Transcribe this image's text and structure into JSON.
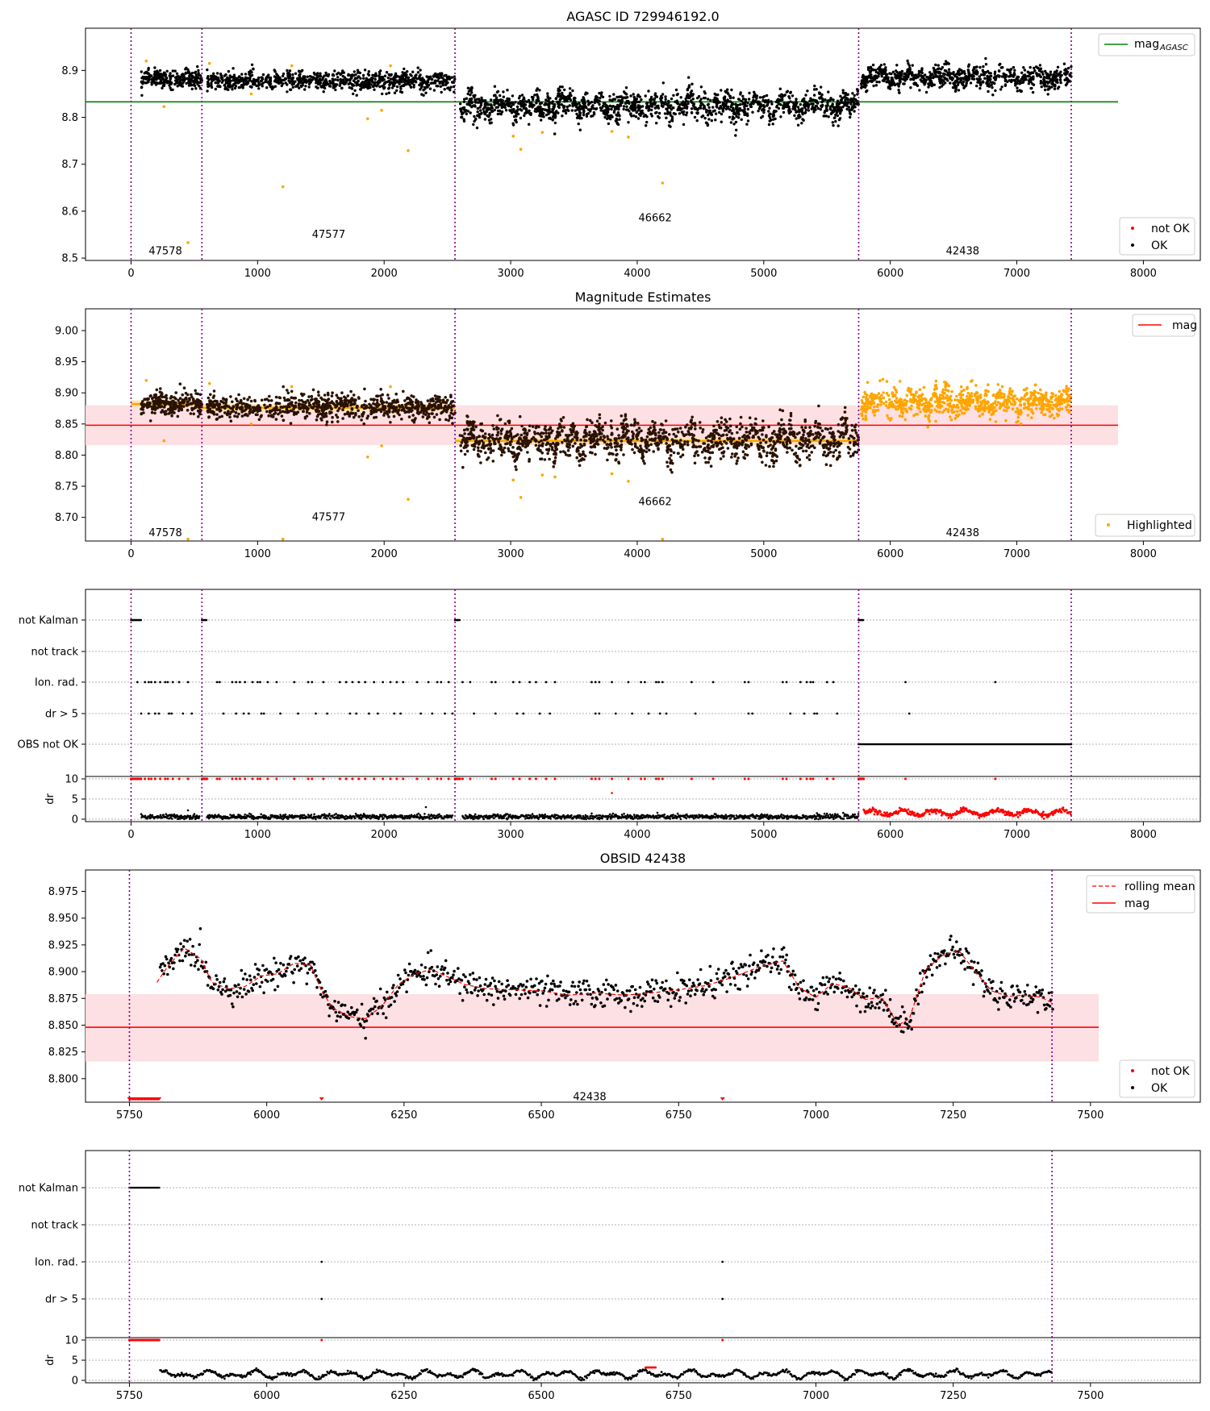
{
  "colors": {
    "ok": "#000000",
    "not_ok": "#ff0000",
    "highlight": "#ffa500",
    "agasc_line": "#008000",
    "mag_line": "#ff0000",
    "band": "#fddde0",
    "obs_line": "#800080",
    "dark_points": "#2a1200"
  },
  "chart_data": [
    {
      "type": "scatter",
      "title": "AGASC ID 729946192.0",
      "xlim": [
        -360,
        8450
      ],
      "ylim": [
        8.495,
        8.99
      ],
      "xticks": [
        "0",
        "1000",
        "2000",
        "3000",
        "4000",
        "5000",
        "6000",
        "7000",
        "8000"
      ],
      "yticks": [
        "8.5",
        "8.6",
        "8.7",
        "8.8",
        "8.9"
      ],
      "obs_boundaries": [
        0,
        560,
        2560,
        5750,
        7430
      ],
      "obs_labels": [
        {
          "text": "47578",
          "x": 280,
          "y": 8.515
        },
        {
          "text": "47577",
          "x": 1570,
          "y": 8.55
        },
        {
          "text": "46662",
          "x": 4150,
          "y": 8.585
        },
        {
          "text": "42438",
          "x": 6580,
          "y": 8.515
        }
      ],
      "reference_line": {
        "name": "mag_AGASC",
        "y": 8.833,
        "x": [
          -360,
          7800
        ]
      },
      "segments": [
        {
          "x": [
            80,
            560
          ],
          "mean": 8.882,
          "sd": 0.01,
          "note": "OK"
        },
        {
          "x": [
            600,
            2560
          ],
          "mean": 8.877,
          "sd": 0.011,
          "note": "OK"
        },
        {
          "x": [
            2600,
            5750
          ],
          "mean": 8.822,
          "sd": 0.02,
          "note": "OK"
        },
        {
          "x": [
            5770,
            7430
          ],
          "mean": 8.885,
          "sd": 0.013,
          "note": "OK"
        }
      ],
      "outliers": [
        {
          "x": 120,
          "y": 8.92
        },
        {
          "x": 260,
          "y": 8.823
        },
        {
          "x": 450,
          "y": 8.533
        },
        {
          "x": 620,
          "y": 8.915
        },
        {
          "x": 950,
          "y": 8.85
        },
        {
          "x": 1200,
          "y": 8.652
        },
        {
          "x": 1270,
          "y": 8.91
        },
        {
          "x": 1870,
          "y": 8.797
        },
        {
          "x": 1980,
          "y": 8.815
        },
        {
          "x": 2050,
          "y": 8.91
        },
        {
          "x": 2190,
          "y": 8.729
        },
        {
          "x": 3020,
          "y": 8.76
        },
        {
          "x": 3080,
          "y": 8.732
        },
        {
          "x": 3250,
          "y": 8.768
        },
        {
          "x": 3350,
          "y": 8.765
        },
        {
          "x": 3800,
          "y": 8.77
        },
        {
          "x": 3930,
          "y": 8.758
        },
        {
          "x": 4200,
          "y": 8.66
        }
      ],
      "legend": [
        {
          "label": "mag",
          "sub": "AGASC",
          "type": "line",
          "position": "upper right"
        },
        {
          "label": "not OK",
          "type": "point"
        },
        {
          "label": "OK",
          "type": "point"
        }
      ]
    },
    {
      "type": "scatter",
      "title": "Magnitude Estimates",
      "xlim": [
        -360,
        8450
      ],
      "ylim": [
        8.662,
        9.035
      ],
      "xticks": [
        "0",
        "1000",
        "2000",
        "3000",
        "4000",
        "5000",
        "6000",
        "7000",
        "8000"
      ],
      "yticks": [
        "8.70",
        "8.75",
        "8.80",
        "8.85",
        "8.90",
        "8.95",
        "9.00"
      ],
      "obs_boundaries": [
        0,
        560,
        2560,
        5750,
        7430
      ],
      "obs_labels": [
        {
          "text": "47578",
          "x": 280,
          "y": 8.675
        },
        {
          "text": "47577",
          "x": 1570,
          "y": 8.7
        },
        {
          "text": "46662",
          "x": 4150,
          "y": 8.725
        },
        {
          "text": "42438",
          "x": 6580,
          "y": 8.675
        }
      ],
      "mag_line": {
        "name": "mag",
        "y": 8.848,
        "band": [
          8.816,
          8.88
        ],
        "x": [
          -360,
          7800
        ]
      },
      "segment_means": [
        {
          "x": [
            0,
            560
          ],
          "y": 8.882
        },
        {
          "x": [
            560,
            2560
          ],
          "y": 8.876
        },
        {
          "x": [
            2560,
            5750
          ],
          "y": 8.823
        }
      ],
      "highlighted_segment": {
        "x": [
          5770,
          7430
        ],
        "mean": 8.885
      },
      "legend": [
        {
          "label": "mag",
          "type": "line",
          "position": "upper right"
        },
        {
          "label": "Highlighted",
          "type": "point",
          "position": "lower right"
        }
      ]
    },
    {
      "type": "scatter",
      "title": "",
      "xlim": [
        -360,
        8450
      ],
      "flag_rows": [
        "not Kalman",
        "not track",
        "Ion. rad.",
        "dr > 5",
        "OBS not OK"
      ],
      "dr_yticks": [
        "0",
        "5",
        "10"
      ],
      "dr_ylabel": "dr",
      "xticks": [
        "0",
        "1000",
        "2000",
        "3000",
        "4000",
        "5000",
        "6000",
        "7000",
        "8000"
      ],
      "obs_boundaries": [
        0,
        560,
        2560,
        5750,
        7430
      ],
      "not_kalman_ranges": [
        [
          0,
          80
        ],
        [
          560,
          600
        ],
        [
          2560,
          2600
        ],
        [
          5750,
          5790
        ]
      ],
      "obs_not_ok_range": [
        5750,
        7430
      ],
      "ion_rad_x": [
        50,
        110,
        140,
        160,
        190,
        230,
        270,
        290,
        330,
        380,
        450,
        680,
        700,
        800,
        830,
        860,
        900,
        960,
        1000,
        1020,
        1080,
        1150,
        1290,
        1400,
        1430,
        1520,
        1650,
        1700,
        1750,
        1800,
        1850,
        1920,
        1990,
        2050,
        2100,
        2150,
        2260,
        2350,
        2420,
        2450,
        2510,
        2620,
        2680,
        2850,
        2880,
        3020,
        3070,
        3150,
        3200,
        3280,
        3350,
        3640,
        3670,
        3700,
        3800,
        3930,
        4030,
        4060,
        4150,
        4170,
        4200,
        4430,
        4600,
        4850,
        4880,
        5150,
        5180,
        5290,
        5340,
        5370,
        5390,
        5500,
        5550,
        6120,
        6830
      ]
    },
    {
      "type": "line",
      "title": "OBSID 42438",
      "xlim": [
        5670,
        7700
      ],
      "ylim": [
        8.778,
        8.995
      ],
      "xticks": [
        "5750",
        "6000",
        "6250",
        "6500",
        "6750",
        "7000",
        "7250",
        "7500"
      ],
      "yticks": [
        "8.800",
        "8.825",
        "8.850",
        "8.875",
        "8.900",
        "8.925",
        "8.950",
        "8.975"
      ],
      "obs_boundaries": [
        5750,
        7430
      ],
      "obs_label": {
        "text": "42438",
        "x": 6590,
        "y": 8.783
      },
      "mag_line": {
        "name": "mag",
        "y": 8.848,
        "band": [
          8.816,
          8.879
        ],
        "x": [
          5670,
          7515
        ]
      },
      "rolling_mean": {
        "name": "rolling mean",
        "x": [
          5800,
          5820,
          5850,
          5880,
          5900,
          5930,
          5960,
          5990,
          6020,
          6050,
          6080,
          6100,
          6120,
          6150,
          6180,
          6210,
          6240,
          6270,
          6300,
          6330,
          6360,
          6400,
          6450,
          6500,
          6550,
          6600,
          6650,
          6700,
          6750,
          6800,
          6850,
          6900,
          6940,
          6970,
          7000,
          7030,
          7060,
          7090,
          7120,
          7150,
          7170,
          7200,
          7230,
          7260,
          7290,
          7320,
          7350,
          7380,
          7410,
          7430
        ],
        "y": [
          8.89,
          8.905,
          8.922,
          8.912,
          8.89,
          8.884,
          8.886,
          8.896,
          8.898,
          8.908,
          8.906,
          8.882,
          8.866,
          8.858,
          8.856,
          8.868,
          8.888,
          8.898,
          8.902,
          8.895,
          8.888,
          8.884,
          8.883,
          8.882,
          8.878,
          8.88,
          8.878,
          8.88,
          8.883,
          8.887,
          8.895,
          8.905,
          8.91,
          8.885,
          8.876,
          8.889,
          8.885,
          8.874,
          8.876,
          8.85,
          8.856,
          8.902,
          8.915,
          8.92,
          8.9,
          8.882,
          8.877,
          8.878,
          8.876,
          8.871
        ]
      },
      "not_ok_ranges": [
        [
          5750,
          5805
        ]
      ],
      "not_ok_markers": [
        6100,
        6830
      ],
      "legend": [
        {
          "label": "rolling mean",
          "type": "dashed-line",
          "position": "upper right"
        },
        {
          "label": "mag",
          "type": "line"
        },
        {
          "label": "not OK",
          "type": "point",
          "position": "lower right"
        },
        {
          "label": "OK",
          "type": "point"
        }
      ]
    },
    {
      "type": "scatter",
      "title": "",
      "xlim": [
        5670,
        7700
      ],
      "flag_rows": [
        "not Kalman",
        "not track",
        "Ion. rad.",
        "dr > 5"
      ],
      "dr_yticks": [
        "0",
        "5",
        "10"
      ],
      "dr_ylabel": "dr",
      "xticks": [
        "5750",
        "6000",
        "6250",
        "6500",
        "6750",
        "7000",
        "7250",
        "7500"
      ],
      "obs_boundaries": [
        5750,
        7430
      ],
      "not_kalman_ranges": [
        [
          5750,
          5805
        ]
      ],
      "ion_rad_x": [
        6100,
        6830
      ],
      "dr_gt5_x": [
        6100,
        6830
      ]
    }
  ]
}
